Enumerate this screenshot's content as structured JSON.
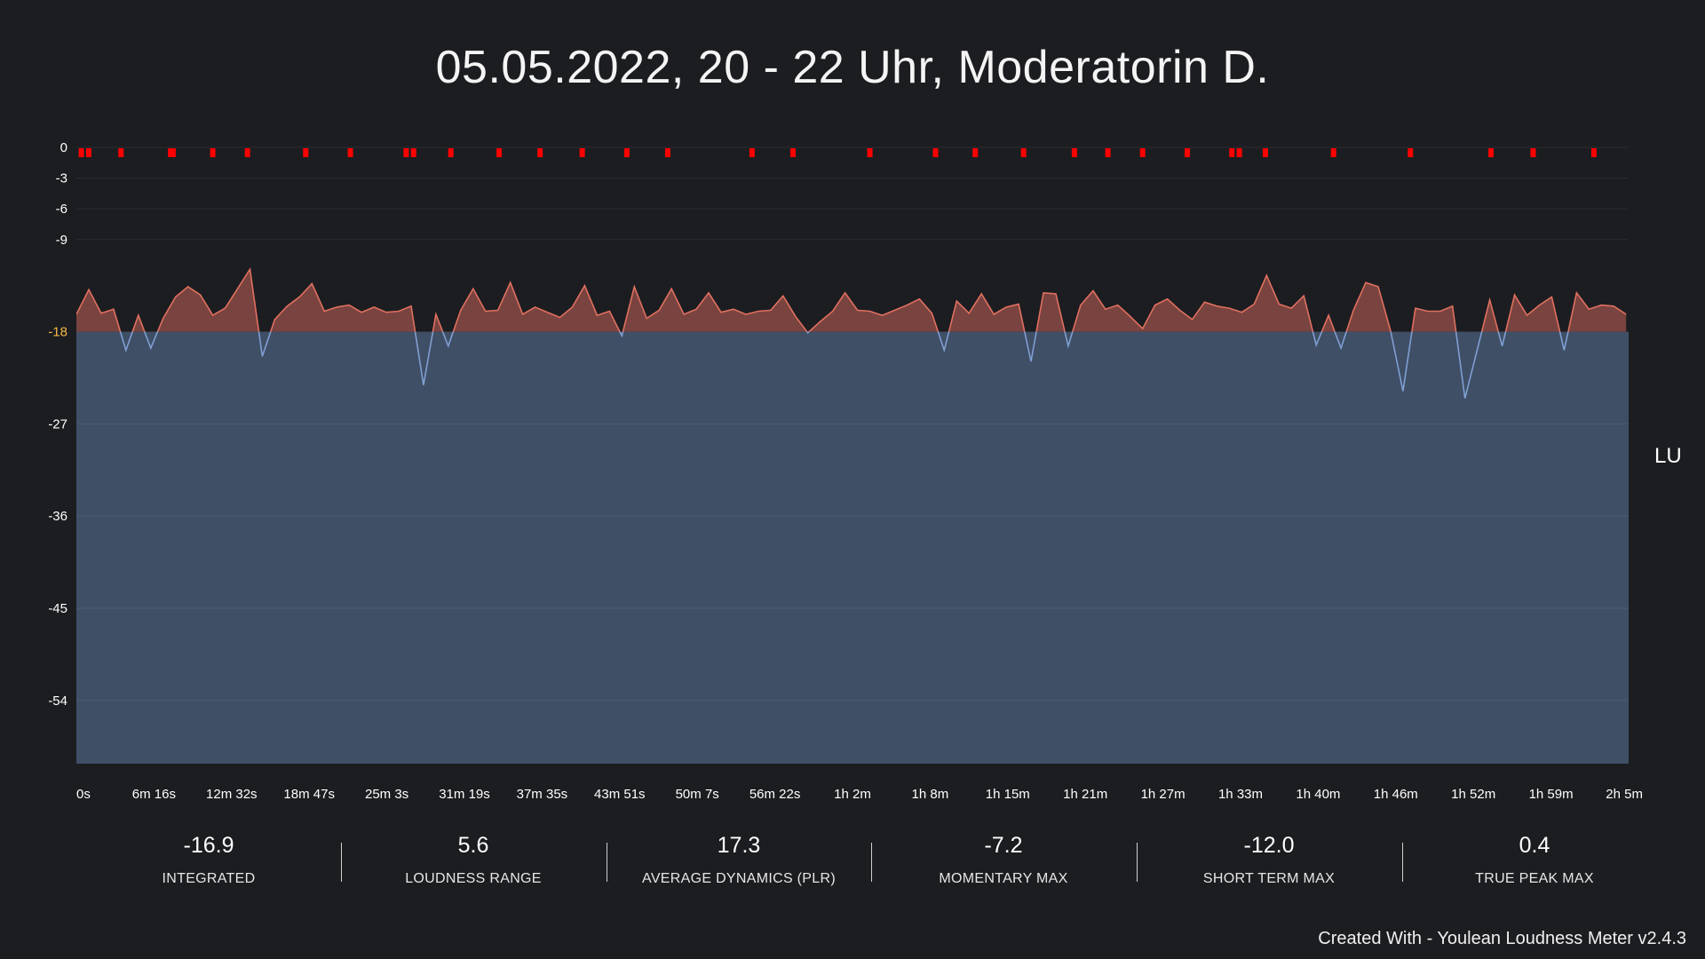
{
  "title": "05.05.2022, 20 - 22 Uhr, Moderatorin D.",
  "unit_label": "LU",
  "footer": "Created With - Youlean Loudness Meter v2.4.3",
  "colors": {
    "background": "#1c1d21",
    "fill_area": "#3f4f66",
    "above_target_fill": "#8a4a45",
    "above_target_line": "#e0705f",
    "below_target_line": "#7f9fd2",
    "true_peak_marker": "#ff0000",
    "target_tick": "#f2b844"
  },
  "stats": [
    {
      "value": "-16.9",
      "label": "INTEGRATED"
    },
    {
      "value": "5.6",
      "label": "LOUDNESS RANGE"
    },
    {
      "value": "17.3",
      "label": "AVERAGE DYNAMICS (PLR)"
    },
    {
      "value": "-7.2",
      "label": "MOMENTARY MAX"
    },
    {
      "value": "-12.0",
      "label": "SHORT TERM MAX"
    },
    {
      "value": "0.4",
      "label": "TRUE PEAK MAX"
    }
  ],
  "chart_data": {
    "type": "area",
    "title": "05.05.2022, 20 - 22 Uhr, Moderatorin D.",
    "ylabel": "LU",
    "xlabel": "",
    "target": -18,
    "ylim": [
      -60,
      0
    ],
    "y_ticks": [
      0,
      -3,
      -6,
      -9,
      -18,
      -27,
      -36,
      -45,
      -54
    ],
    "x_ticks": [
      "0s",
      "6m 16s",
      "12m 32s",
      "18m 47s",
      "25m 3s",
      "31m 19s",
      "37m 35s",
      "43m 51s",
      "50m 7s",
      "56m 22s",
      "1h 2m",
      "1h 8m",
      "1h 15m",
      "1h 21m",
      "1h 27m",
      "1h 33m",
      "1h 40m",
      "1h 46m",
      "1h 52m",
      "1h 59m",
      "2h 5m"
    ],
    "x_unit": "minutes",
    "x_range_minutes": [
      0,
      125.2
    ],
    "series": [
      {
        "type": "short-term loudness",
        "x_minutes": [
          0,
          1,
          2,
          3,
          4,
          5,
          6,
          7,
          8,
          9,
          10,
          11,
          12,
          13,
          14,
          15,
          16,
          17,
          18,
          19,
          20,
          21,
          22,
          23,
          24,
          25,
          26,
          27,
          28,
          29,
          30,
          31,
          32,
          33,
          34,
          35,
          36,
          37,
          38,
          39,
          40,
          41,
          42,
          43,
          44,
          45,
          46,
          47,
          48,
          49,
          50,
          51,
          52,
          53,
          54,
          55,
          56,
          57,
          58,
          59,
          60,
          61,
          62,
          63,
          64,
          65,
          66,
          67,
          68,
          69,
          70,
          71,
          72,
          73,
          74,
          75,
          76,
          77,
          78,
          79,
          80,
          81,
          82,
          83,
          84,
          85,
          86,
          87,
          88,
          89,
          90,
          91,
          92,
          93,
          94,
          95,
          96,
          97,
          98,
          99,
          100,
          101,
          102,
          103,
          104,
          105,
          106,
          107,
          108,
          109,
          110,
          111,
          112,
          113,
          114,
          115,
          116,
          117,
          118,
          119,
          120,
          121,
          122,
          123,
          124,
          125
        ],
        "values": [
          -16.3,
          -13.9,
          -16.2,
          -15.8,
          -19.8,
          -16.4,
          -19.6,
          -16.7,
          -14.6,
          -13.6,
          -14.4,
          -16.4,
          -15.7,
          -13.8,
          -11.9,
          -20.4,
          -16.8,
          -15.5,
          -14.6,
          -13.3,
          -16.0,
          -15.6,
          -15.4,
          -16.1,
          -15.6,
          -16.1,
          -16.0,
          -15.5,
          -23.2,
          -16.3,
          -19.4,
          -15.9,
          -13.8,
          -16.0,
          -15.9,
          -13.2,
          -16.3,
          -15.6,
          -16.1,
          -16.6,
          -15.6,
          -13.5,
          -16.4,
          -16.0,
          -18.4,
          -13.6,
          -16.7,
          -15.9,
          -13.8,
          -16.3,
          -15.8,
          -14.2,
          -16.1,
          -15.8,
          -16.3,
          -16.0,
          -15.9,
          -14.5,
          -16.5,
          -18.1,
          -17.0,
          -16.0,
          -14.2,
          -15.9,
          -16.0,
          -16.4,
          -15.9,
          -15.4,
          -14.8,
          -16.2,
          -19.8,
          -15.0,
          -16.2,
          -14.3,
          -16.3,
          -15.6,
          -15.3,
          -20.9,
          -14.2,
          -14.3,
          -19.4,
          -15.4,
          -14.0,
          -15.8,
          -15.4,
          -16.5,
          -17.7,
          -15.4,
          -14.8,
          -15.9,
          -16.8,
          -15.1,
          -15.5,
          -15.7,
          -16.1,
          -15.3,
          -12.5,
          -15.3,
          -15.7,
          -14.5,
          -19.3,
          -16.4,
          -19.6,
          -15.9,
          -13.2,
          -13.6,
          -17.9,
          -23.8,
          -15.7,
          -16.0,
          -16.0,
          -15.5,
          -24.5,
          -19.7,
          -14.9,
          -19.4,
          -14.4,
          -16.4,
          -15.4,
          -14.6,
          -19.8,
          -14.2,
          -15.8,
          -15.4,
          -15.5,
          -16.3
        ]
      }
    ],
    "true_peak_markers_minutes": [
      0.4,
      1.0,
      3.6,
      7.6,
      7.8,
      11.0,
      13.8,
      18.5,
      22.1,
      26.6,
      27.2,
      30.2,
      34.1,
      37.4,
      40.8,
      44.4,
      47.7,
      54.5,
      57.8,
      64.0,
      69.3,
      72.5,
      76.4,
      80.5,
      83.2,
      86.0,
      89.6,
      93.2,
      93.8,
      95.9,
      101.4,
      107.6,
      114.1,
      117.5,
      122.4
    ]
  }
}
